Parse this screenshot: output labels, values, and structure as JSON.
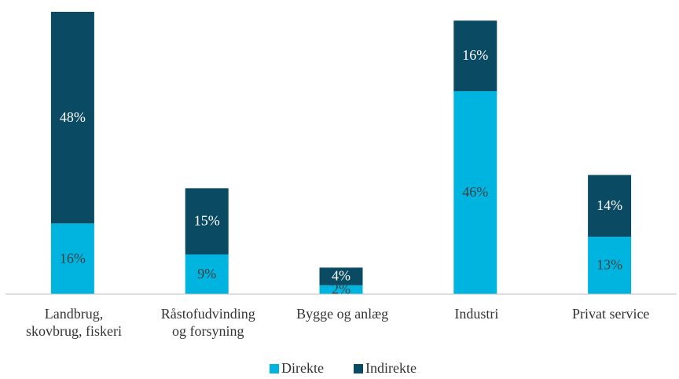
{
  "chart_data": {
    "type": "stacked_bar",
    "categories": [
      "Landbrug,\nskovbrug, fiskeri",
      "Råstofudvinding\nog forsyning",
      "Bygge og anlæg",
      "Industri",
      "Privat service"
    ],
    "series": [
      {
        "name": "Direkte",
        "color": "#00b4e0",
        "values": [
          16,
          9,
          2,
          46,
          13
        ],
        "value_labels": [
          "16%",
          "9%",
          "2%",
          "46%",
          "13%"
        ]
      },
      {
        "name": "Indirekte",
        "color": "#0b4a63",
        "values": [
          48,
          15,
          4,
          16,
          14
        ],
        "value_labels": [
          "48%",
          "15%",
          "4%",
          "16%",
          "14%"
        ]
      }
    ],
    "ylim": [
      0,
      64
    ],
    "legend": "bottom"
  }
}
